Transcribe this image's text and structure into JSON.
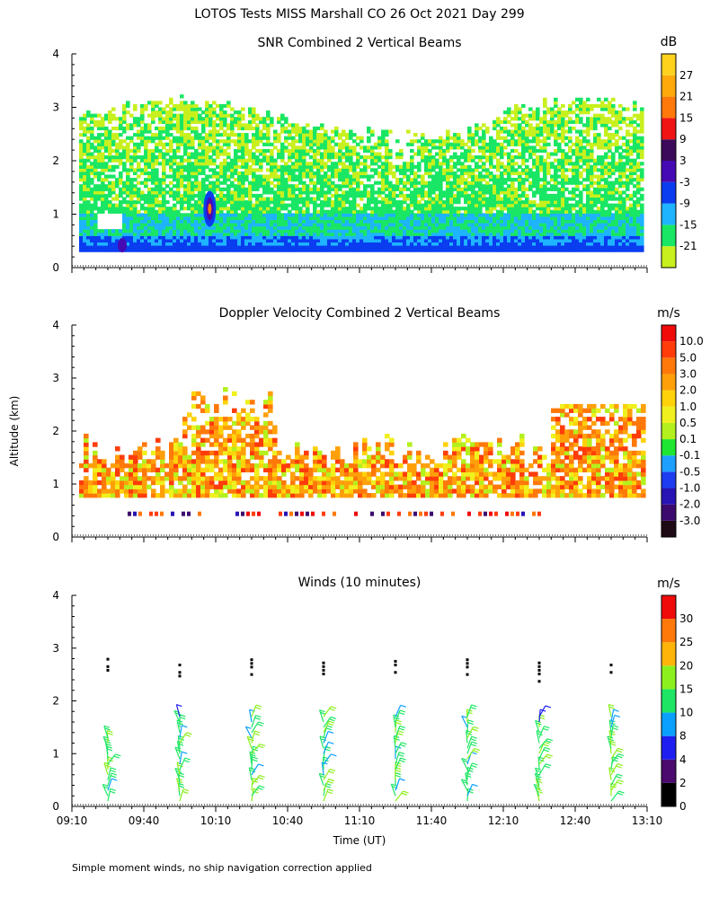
{
  "figure_title": "LOTOS Tests MISS Marshall CO  26 Oct 2021 Day 299",
  "footnote": "Simple moment winds, no ship navigation correction applied",
  "shared_ylabel": "Altitude (km)",
  "shared_xlabel": "Time (UT)",
  "chart_data": [
    {
      "type": "heatmap",
      "title": "SNR Combined 2 Vertical Beams",
      "ylabel": "Altitude (km)",
      "ylim": [
        0,
        4
      ],
      "yticks": [
        "0",
        "1",
        "2",
        "3",
        "4"
      ],
      "xlim_minutes_utc": [
        550,
        790
      ],
      "colorbar": {
        "unit": "dB",
        "labels": [
          "-21",
          "-15",
          "-9",
          "-3",
          "3",
          "9",
          "15",
          "21",
          "27"
        ],
        "colors": [
          "#c8f01e",
          "#19e664",
          "#1eb4ff",
          "#0a3cf0",
          "#460ab4",
          "#3c0a5a",
          "#f01414",
          "#ff780a",
          "#ffaa0a",
          "#ffd21e"
        ]
      }
    },
    {
      "type": "heatmap",
      "title": "Doppler Velocity Combined 2 Vertical Beams",
      "ylabel": "Altitude (km)",
      "ylim": [
        0,
        4
      ],
      "yticks": [
        "0",
        "1",
        "2",
        "3",
        "4"
      ],
      "xlim_minutes_utc": [
        550,
        790
      ],
      "colorbar": {
        "unit": "m/s",
        "labels": [
          "10.0",
          "5.0",
          "3.0",
          "2.0",
          "1.0",
          "0.5",
          "0.1",
          "-0.1",
          "-0.5",
          "-1.0",
          "-2.0",
          "-3.0"
        ],
        "colors": [
          "#1e0a14",
          "#3c0a6e",
          "#2814b4",
          "#1e3cf0",
          "#1ea0ff",
          "#1ee632",
          "#b4f01e",
          "#f0f01e",
          "#ffd20a",
          "#ffa00a",
          "#ff780a",
          "#ff3c0a",
          "#f00a0a"
        ]
      }
    },
    {
      "type": "scatter",
      "title": "Winds (10 minutes)",
      "ylabel": "Altitude (km)",
      "xlabel": "Time (UT)",
      "ylim": [
        0,
        4
      ],
      "yticks": [
        "0",
        "1",
        "2",
        "3",
        "4"
      ],
      "xlim_minutes_utc": [
        550,
        790
      ],
      "xticks": [
        "09:10",
        "09:40",
        "10:10",
        "10:40",
        "11:10",
        "11:40",
        "12:10",
        "12:40",
        "13:10"
      ],
      "xtick_minutes": [
        550,
        580,
        610,
        640,
        670,
        700,
        730,
        760,
        790
      ],
      "profile_times_utc": [
        "09:25",
        "09:55",
        "10:25",
        "10:55",
        "11:25",
        "11:55",
        "12:25",
        "12:55"
      ],
      "profile_minutes": [
        565,
        595,
        625,
        655,
        685,
        715,
        745,
        775
      ],
      "colorbar": {
        "unit": "m/s",
        "labels": [
          "0",
          "2",
          "4",
          "8",
          "10",
          "15",
          "20",
          "25",
          "30"
        ],
        "colors": [
          "#000000",
          "#4b0a6e",
          "#1e1ef0",
          "#0aa0ff",
          "#1ee664",
          "#8cf01e",
          "#ffb40a",
          "#ff780a",
          "#f00a0a"
        ]
      }
    }
  ]
}
